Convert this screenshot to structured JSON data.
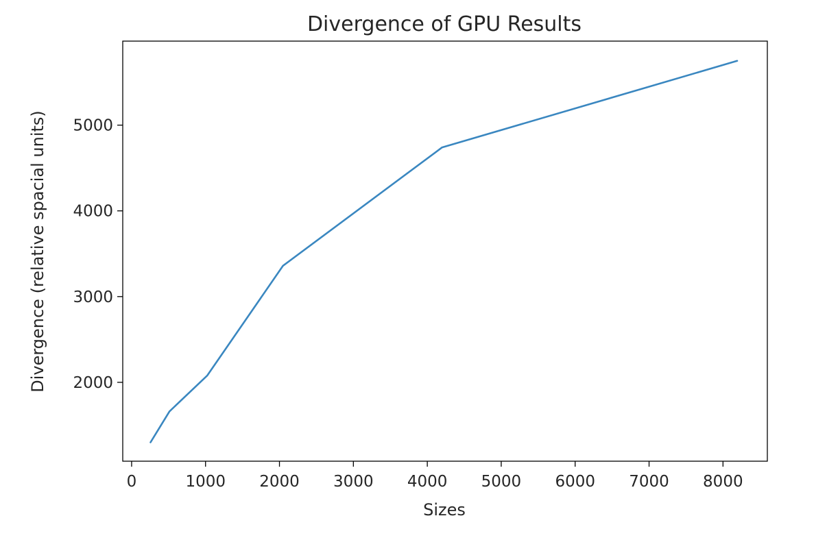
{
  "chart_data": {
    "type": "line",
    "title": "Divergence of GPU Results",
    "xlabel": "Sizes",
    "ylabel": "Divergence (relative spacial units)",
    "xlim": [
      -120,
      8600
    ],
    "ylim": [
      1080,
      5980
    ],
    "xticks": [
      0,
      1000,
      2000,
      3000,
      4000,
      5000,
      6000,
      7000,
      8000
    ],
    "xtick_labels": [
      "0",
      "1000",
      "2000",
      "3000",
      "4000",
      "5000",
      "6000",
      "7000",
      "8000"
    ],
    "yticks": [
      2000,
      3000,
      4000,
      5000
    ],
    "ytick_labels": [
      "2000",
      "3000",
      "4000",
      "5000"
    ],
    "grid": false,
    "series": [
      {
        "color": "#3a87c0",
        "x": [
          256,
          512,
          1024,
          2048,
          4200,
          8192
        ],
        "y": [
          1300,
          1660,
          2080,
          3360,
          4740,
          5750
        ]
      }
    ]
  }
}
